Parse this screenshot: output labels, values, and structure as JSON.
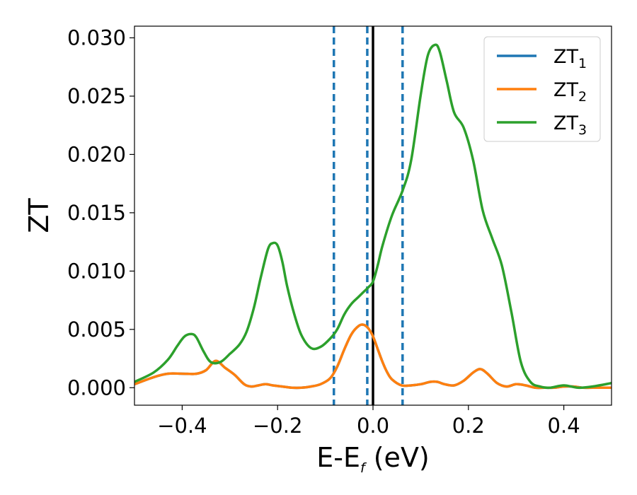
{
  "chart_data": {
    "type": "line",
    "title": "",
    "xlabel_main": "E-E",
    "xlabel_sub": "f",
    "xlabel_unit": " (eV)",
    "ylabel": "ZT",
    "xlim": [
      -0.5,
      0.5
    ],
    "ylim": [
      -0.0015,
      0.031
    ],
    "x_ticks": [
      -0.4,
      -0.2,
      0.0,
      0.2,
      0.4
    ],
    "x_tick_labels": [
      "−0.4",
      "−0.2",
      "0.0",
      "0.2",
      "0.4"
    ],
    "y_ticks": [
      0.0,
      0.005,
      0.01,
      0.015,
      0.02,
      0.025,
      0.03
    ],
    "y_tick_labels": [
      "0.000",
      "0.005",
      "0.010",
      "0.015",
      "0.020",
      "0.025",
      "0.030"
    ],
    "grid": false,
    "legend_position": "top-right",
    "vertical_lines": [
      {
        "x": -0.082,
        "style": "dashed",
        "color": "#1f77b4"
      },
      {
        "x": -0.012,
        "style": "dashed",
        "color": "#1f77b4"
      },
      {
        "x": 0.0,
        "style": "solid",
        "color": "#000000"
      },
      {
        "x": 0.062,
        "style": "dashed",
        "color": "#1f77b4"
      }
    ],
    "series": [
      {
        "name": "ZT",
        "sub": "1",
        "color": "#1f77b4",
        "x": [
          -0.5,
          -0.46,
          -0.43,
          -0.4,
          -0.37,
          -0.35,
          -0.33,
          -0.31,
          -0.29,
          -0.27,
          -0.255,
          -0.24,
          -0.225,
          -0.21,
          -0.19,
          -0.17,
          -0.15,
          -0.13,
          -0.11,
          -0.09,
          -0.075,
          -0.06,
          -0.045,
          -0.03,
          -0.02,
          -0.01,
          0.0,
          0.01,
          0.02,
          0.03,
          0.04,
          0.06,
          0.08,
          0.1,
          0.12,
          0.135,
          0.15,
          0.17,
          0.19,
          0.21,
          0.225,
          0.24,
          0.26,
          0.28,
          0.3,
          0.32,
          0.34,
          0.36,
          0.38,
          0.4,
          0.42,
          0.44,
          0.46,
          0.5
        ],
        "y": [
          0.0003,
          0.0009,
          0.0012,
          0.0012,
          0.0012,
          0.0015,
          0.0023,
          0.0017,
          0.0011,
          0.0003,
          0.0001,
          0.0002,
          0.0003,
          0.0002,
          0.0001,
          0.0,
          0.0,
          0.0001,
          0.0003,
          0.0008,
          0.0018,
          0.0033,
          0.0046,
          0.0053,
          0.0054,
          0.0051,
          0.0044,
          0.0033,
          0.0022,
          0.0013,
          0.0007,
          0.0002,
          0.0002,
          0.0003,
          0.0005,
          0.0005,
          0.0003,
          0.0002,
          0.0006,
          0.0013,
          0.0016,
          0.0012,
          0.0004,
          0.0001,
          0.0003,
          0.0002,
          0.0,
          0.0,
          0.0,
          0.0001,
          0.0001,
          0.0,
          0.0,
          0.0
        ]
      },
      {
        "name": "ZT",
        "sub": "2",
        "color": "#ff7f0e",
        "x": [
          -0.5,
          -0.46,
          -0.43,
          -0.4,
          -0.37,
          -0.35,
          -0.33,
          -0.31,
          -0.29,
          -0.27,
          -0.255,
          -0.24,
          -0.225,
          -0.21,
          -0.19,
          -0.17,
          -0.15,
          -0.13,
          -0.11,
          -0.09,
          -0.075,
          -0.06,
          -0.045,
          -0.03,
          -0.02,
          -0.01,
          0.0,
          0.01,
          0.02,
          0.03,
          0.04,
          0.06,
          0.08,
          0.1,
          0.12,
          0.135,
          0.15,
          0.17,
          0.19,
          0.21,
          0.225,
          0.24,
          0.26,
          0.28,
          0.3,
          0.32,
          0.34,
          0.36,
          0.38,
          0.4,
          0.42,
          0.44,
          0.46,
          0.5
        ],
        "y": [
          0.0003,
          0.0009,
          0.0012,
          0.0012,
          0.0012,
          0.0015,
          0.0023,
          0.0017,
          0.0011,
          0.0003,
          0.0001,
          0.0002,
          0.0003,
          0.0002,
          0.0001,
          0.0,
          0.0,
          0.0001,
          0.0003,
          0.0008,
          0.0018,
          0.0033,
          0.0046,
          0.0053,
          0.0054,
          0.0051,
          0.0044,
          0.0033,
          0.0022,
          0.0013,
          0.0007,
          0.0002,
          0.0002,
          0.0003,
          0.0005,
          0.0005,
          0.0003,
          0.0002,
          0.0006,
          0.0013,
          0.0016,
          0.0012,
          0.0004,
          0.0001,
          0.0003,
          0.0002,
          0.0,
          0.0,
          0.0,
          0.0001,
          0.0001,
          0.0,
          0.0,
          0.0
        ]
      },
      {
        "name": "ZT",
        "sub": "3",
        "color": "#2ca02c",
        "x": [
          -0.5,
          -0.46,
          -0.43,
          -0.41,
          -0.395,
          -0.38,
          -0.37,
          -0.355,
          -0.34,
          -0.32,
          -0.3,
          -0.28,
          -0.265,
          -0.25,
          -0.235,
          -0.22,
          -0.21,
          -0.2,
          -0.19,
          -0.18,
          -0.165,
          -0.15,
          -0.13,
          -0.11,
          -0.09,
          -0.075,
          -0.06,
          -0.045,
          -0.03,
          -0.02,
          -0.01,
          0.0,
          0.01,
          0.02,
          0.04,
          0.062,
          0.08,
          0.1,
          0.115,
          0.13,
          0.14,
          0.155,
          0.17,
          0.19,
          0.21,
          0.23,
          0.25,
          0.27,
          0.29,
          0.31,
          0.33,
          0.35,
          0.37,
          0.4,
          0.43,
          0.46,
          0.5
        ],
        "y": [
          0.0005,
          0.0013,
          0.0024,
          0.0036,
          0.0044,
          0.0046,
          0.0043,
          0.0031,
          0.0022,
          0.0022,
          0.0029,
          0.0037,
          0.0048,
          0.0068,
          0.0095,
          0.0119,
          0.0124,
          0.0122,
          0.0108,
          0.0087,
          0.0063,
          0.0045,
          0.0034,
          0.0035,
          0.0042,
          0.005,
          0.0063,
          0.0072,
          0.0078,
          0.0082,
          0.0086,
          0.0091,
          0.0105,
          0.0122,
          0.0148,
          0.0169,
          0.0195,
          0.0251,
          0.0285,
          0.0294,
          0.0288,
          0.0262,
          0.0236,
          0.0223,
          0.0195,
          0.0152,
          0.0128,
          0.0105,
          0.0065,
          0.0022,
          0.0005,
          0.0001,
          0.0,
          0.0002,
          0.0,
          0.0001,
          0.0004
        ]
      }
    ]
  }
}
